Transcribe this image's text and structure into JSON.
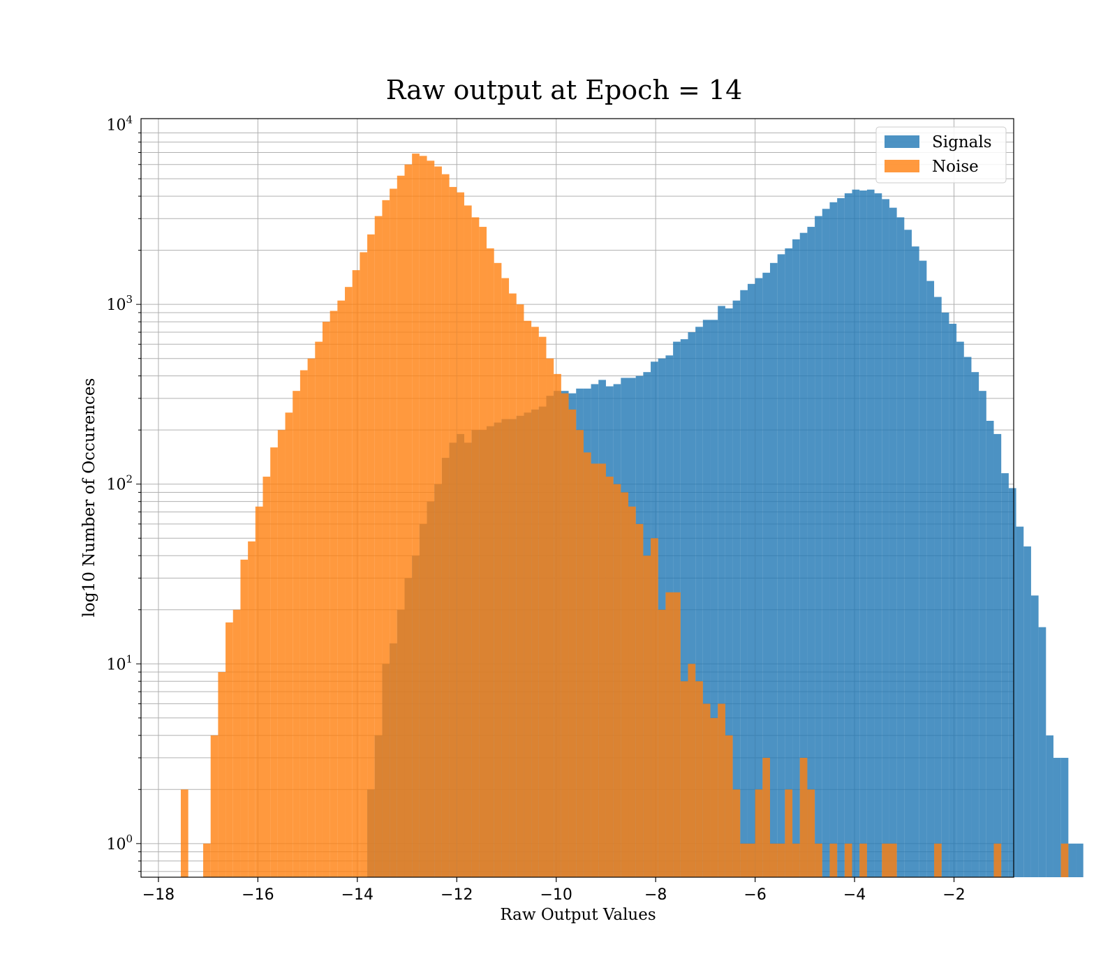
{
  "chart_data": {
    "type": "bar",
    "title": "Raw output at Epoch = 14",
    "xlabel": "Raw Output Values",
    "ylabel": "log10 Number of Occurences",
    "xlim": [
      -18.35,
      -0.8
    ],
    "ylim": [
      0.65,
      10800
    ],
    "yscale": "log",
    "grid": true,
    "legend_position": "top-right",
    "xticks": [
      -18,
      -16,
      -14,
      -12,
      -10,
      -8,
      -6,
      -4,
      -2
    ],
    "xtick_labels": [
      "−18",
      "−16",
      "−14",
      "−12",
      "−10",
      "−8",
      "−6",
      "−4",
      "−2"
    ],
    "yticks": [
      {
        "value": 1,
        "base": "10",
        "exp": "0"
      },
      {
        "value": 10,
        "base": "10",
        "exp": "1"
      },
      {
        "value": 100,
        "base": "10",
        "exp": "2"
      },
      {
        "value": 1000,
        "base": "10",
        "exp": "3"
      },
      {
        "value": 10000,
        "base": "10",
        "exp": "4"
      }
    ],
    "series": [
      {
        "name": "Signals",
        "color": "#1f77b4",
        "opacity": 0.8,
        "bin_start": -13.8,
        "bin_width": 0.15,
        "values": [
          2,
          4,
          10,
          13,
          20,
          30,
          40,
          60,
          80,
          100,
          140,
          170,
          190,
          170,
          200,
          200,
          210,
          220,
          230,
          230,
          240,
          250,
          260,
          270,
          310,
          330,
          330,
          320,
          340,
          340,
          360,
          380,
          350,
          360,
          390,
          390,
          400,
          420,
          480,
          500,
          520,
          620,
          640,
          700,
          750,
          820,
          820,
          980,
          950,
          1050,
          1200,
          1300,
          1400,
          1500,
          1700,
          1900,
          2050,
          2300,
          2500,
          2700,
          3100,
          3400,
          3700,
          3900,
          4150,
          4350,
          4300,
          4350,
          4150,
          3850,
          3450,
          3050,
          2600,
          2100,
          1750,
          1350,
          1100,
          900,
          780,
          620,
          510,
          420,
          330,
          225,
          190,
          115,
          95,
          58,
          45,
          24,
          16,
          4,
          3,
          3,
          1,
          1
        ]
      },
      {
        "name": "Noise",
        "color": "#ff7f0e",
        "opacity": 0.8,
        "bin_start": -17.55,
        "bin_width": 0.15,
        "values": [
          2,
          0,
          0,
          1,
          4,
          9,
          17,
          20,
          38,
          48,
          75,
          110,
          160,
          200,
          250,
          330,
          430,
          500,
          620,
          800,
          920,
          1050,
          1250,
          1550,
          1950,
          2450,
          3100,
          3800,
          4400,
          5200,
          6000,
          6900,
          6700,
          6300,
          5850,
          5300,
          4500,
          4200,
          3550,
          3050,
          2700,
          2050,
          1700,
          1400,
          1150,
          1000,
          810,
          750,
          660,
          500,
          410,
          320,
          260,
          200,
          150,
          130,
          130,
          110,
          100,
          90,
          75,
          60,
          40,
          50,
          20,
          25,
          25,
          8,
          10,
          8,
          6,
          5,
          6,
          4,
          2,
          1,
          1,
          2,
          3,
          1,
          1,
          2,
          1,
          3,
          2,
          1,
          0,
          1,
          0,
          1,
          0,
          1,
          0,
          0,
          1,
          1,
          0,
          0,
          0,
          0,
          0,
          1,
          0,
          0,
          0,
          0,
          0,
          0,
          0,
          1,
          0,
          0,
          0,
          0,
          0,
          0,
          0,
          0,
          1
        ]
      }
    ]
  }
}
